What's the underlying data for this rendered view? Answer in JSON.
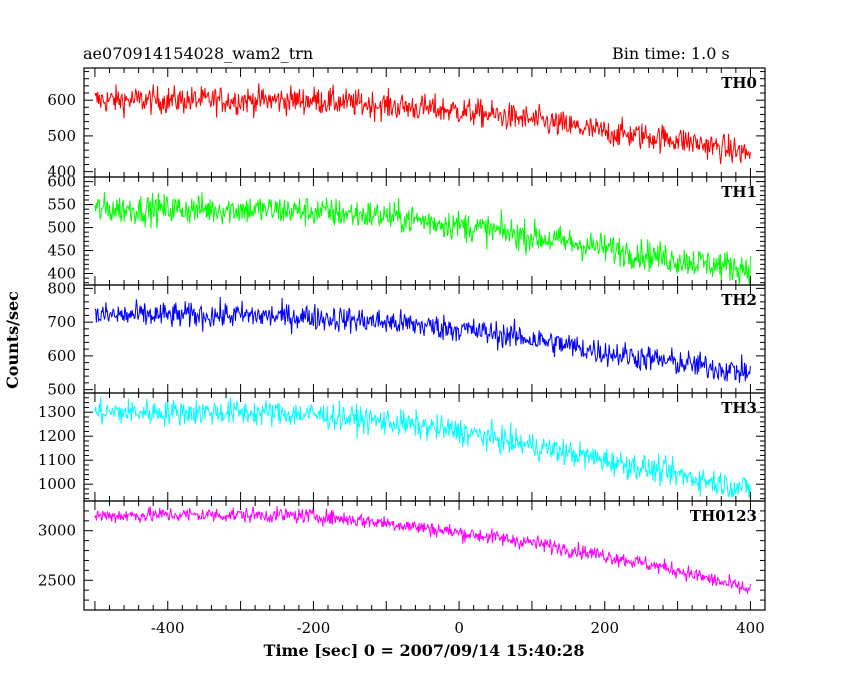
{
  "chart_data": {
    "type": "line",
    "title_left": "ae070914154028_wam2_trn",
    "title_right": "Bin time: 1.0 s",
    "xlabel": "Time [sec] 0 = 2007/09/14 15:40:28",
    "ylabel": "Counts/sec",
    "xlim": [
      -515,
      420
    ],
    "xticks": [
      -400,
      -200,
      0,
      200,
      400
    ],
    "grid": false,
    "panels": [
      {
        "name": "TH0",
        "color": "#ff0000",
        "ylim": [
          385,
          690
        ],
        "yticks": [
          400,
          500,
          600
        ],
        "x": [
          -500,
          -400,
          -300,
          -200,
          -100,
          0,
          100,
          200,
          300,
          400
        ],
        "y": [
          600,
          600,
          600,
          600,
          585,
          570,
          545,
          510,
          490,
          450
        ],
        "noise_amplitude": 35
      },
      {
        "name": "TH1",
        "color": "#00ff00",
        "ylim": [
          375,
          610
        ],
        "yticks": [
          400,
          450,
          500,
          550,
          600
        ],
        "x": [
          -500,
          -400,
          -300,
          -200,
          -100,
          0,
          100,
          200,
          300,
          400
        ],
        "y": [
          540,
          540,
          540,
          535,
          525,
          505,
          480,
          455,
          430,
          410
        ],
        "noise_amplitude": 30
      },
      {
        "name": "TH2",
        "color": "#0000ff",
        "ylim": [
          490,
          810
        ],
        "yticks": [
          500,
          600,
          700,
          800
        ],
        "x": [
          -500,
          -400,
          -300,
          -200,
          -100,
          0,
          100,
          200,
          300,
          400
        ],
        "y": [
          720,
          720,
          720,
          715,
          700,
          680,
          650,
          610,
          580,
          550
        ],
        "noise_amplitude": 35
      },
      {
        "name": "TH3",
        "color": "#00ffff",
        "ylim": [
          930,
          1380
        ],
        "yticks": [
          1000,
          1100,
          1200,
          1300
        ],
        "x": [
          -500,
          -400,
          -300,
          -200,
          -100,
          0,
          100,
          200,
          300,
          400
        ],
        "y": [
          1300,
          1300,
          1300,
          1290,
          1260,
          1220,
          1160,
          1100,
          1040,
          980
        ],
        "noise_amplitude": 50
      },
      {
        "name": "TH0123",
        "color": "#ff00ff",
        "ylim": [
          2200,
          3300
        ],
        "yticks": [
          2500,
          3000
        ],
        "x": [
          -500,
          -400,
          -300,
          -200,
          -100,
          0,
          100,
          200,
          300,
          400
        ],
        "y": [
          3150,
          3160,
          3160,
          3150,
          3080,
          2980,
          2880,
          2750,
          2600,
          2400
        ],
        "noise_amplitude": 70
      }
    ]
  }
}
